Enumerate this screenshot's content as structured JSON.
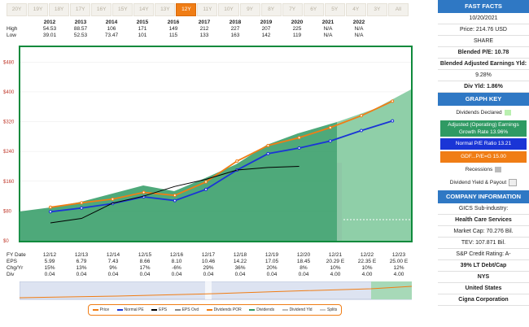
{
  "tabs": [
    "20Y",
    "19Y",
    "18Y",
    "17Y",
    "16Y",
    "15Y",
    "14Y",
    "13Y",
    "12Y",
    "11Y",
    "10Y",
    "9Y",
    "8Y",
    "7Y",
    "6Y",
    "5Y",
    "4Y",
    "3Y",
    "All"
  ],
  "active_tab": "12Y",
  "year_table": {
    "years": [
      "2012",
      "2013",
      "2014",
      "2015",
      "2016",
      "2017",
      "2018",
      "2019",
      "2020",
      "2021",
      "2022"
    ],
    "high_label": "High",
    "low_label": "Low",
    "high": [
      "54.53",
      "88.57",
      "106",
      "171",
      "149",
      "212",
      "227",
      "207",
      "225",
      "N/A",
      "N/A"
    ],
    "low": [
      "39.01",
      "52.53",
      "73.47",
      "101",
      "115",
      "133",
      "163",
      "142",
      "119",
      "N/A",
      "N/A"
    ]
  },
  "chart_data": {
    "type": "area",
    "y_ticks": [
      "$480",
      "$400",
      "$320",
      "$240",
      "$160",
      "$80",
      "$0"
    ],
    "ylim": [
      0,
      520
    ],
    "x_labels": [
      "12/12",
      "12/13",
      "12/14",
      "12/15",
      "12/16",
      "12/17",
      "12/18",
      "12/19",
      "12/20",
      "12/21",
      "12/22",
      "12/23"
    ],
    "series": [
      {
        "name": "Normal PE",
        "color": "#1a35d6",
        "values": [
          78,
          88,
          100,
          118,
          108,
          138,
          190,
          234,
          249,
          268,
          296,
          322
        ]
      },
      {
        "name": "GDF...P/E=G 15.00",
        "color": "#f07d15",
        "values": [
          90,
          102,
          112,
          130,
          122,
          158,
          214,
          256,
          277,
          304,
          336,
          375
        ]
      },
      {
        "name": "Price",
        "color": "#000000",
        "values": [
          48,
          60,
          101,
          120,
          146,
          165,
          190,
          197,
          200
        ]
      }
    ]
  },
  "eps_table": {
    "fy_label": "FY Date",
    "eps_label": "EPS",
    "chg_label": "Chg/Yr",
    "div_label": "Div",
    "eps": [
      "5.99",
      "6.79",
      "7.43",
      "8.66",
      "8.10",
      "10.46",
      "14.22",
      "17.05",
      "18.45",
      "20.29 E",
      "22.35 E",
      "25.00 E"
    ],
    "chg": [
      "15%",
      "13%",
      "9%",
      "17%",
      "-6%",
      "29%",
      "36%",
      "20%",
      "8%",
      "10%",
      "10%",
      "12%"
    ],
    "div": [
      "0.04",
      "0.04",
      "0.04",
      "0.04",
      "0.04",
      "0.04",
      "0.04",
      "0.04",
      "0.04",
      "4.00",
      "4.00",
      "4.00"
    ]
  },
  "legend": [
    "Price",
    "Normal PE",
    "EPS",
    "EPS Ovd",
    "Dividends POR",
    "Dividends",
    "Dividend Yld",
    "Splits"
  ],
  "panel": {
    "fast_facts": "FAST FACTS",
    "date": "10/20/2021",
    "price": "Price: 214.76 USD",
    "share": "SHARE",
    "blended_pe": "Blended P/E: 10.78",
    "earnings_yld_label": "Blended Adjusted Earnings Yld:",
    "earnings_yld": "9.28%",
    "div_yld": "Div Yld: 1.86%",
    "graph_key": "GRAPH KEY",
    "key_div_declared": "Dividends Declared",
    "key_growth": "Adjusted (Operating) Earnings Growth Rate 13.96%",
    "key_normal_pe": "Normal P/E Ratio 13.21",
    "key_gdf": "GDF...P/E=G 15.00",
    "key_recessions": "Recessions",
    "key_div_yield_payout": "Dividend Yield & Payout",
    "company_info": "COMPANY INFORMATION",
    "industry_label": "GICS Sub-industry:",
    "industry": "Health Care Services",
    "market_cap": "Market Cap: 70.276 Bil.",
    "tev": "TEV: 107.871 Bil.",
    "sp_rating": "S&P Credit Rating: A-",
    "debt_cap": "39% LT Debt/Cap",
    "exchange": "NYS",
    "country": "United States",
    "company": "Cigna Corporation"
  }
}
